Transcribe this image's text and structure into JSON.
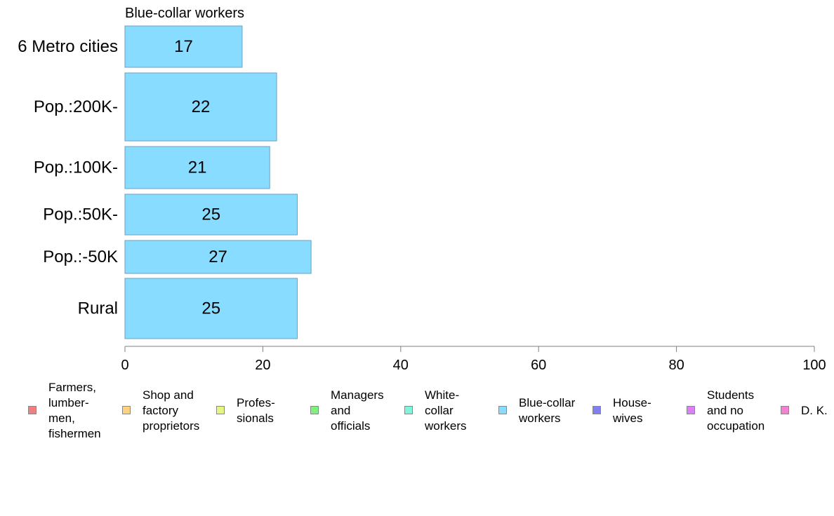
{
  "chart_data": {
    "type": "bar",
    "orientation": "horizontal",
    "title": "Blue-collar workers",
    "categories": [
      "6 Metro cities",
      "Pop.:200K-",
      "Pop.:100K-",
      "Pop.:50K-",
      "Pop.:-50K",
      "Rural"
    ],
    "values": [
      17,
      22,
      21,
      25,
      27,
      25
    ],
    "data_labels": [
      "17",
      "22",
      "21",
      "25",
      "27",
      "25"
    ],
    "xlim": [
      0,
      100
    ],
    "x_ticks": [
      "0",
      "20",
      "40",
      "60",
      "80",
      "100"
    ],
    "grid": false,
    "bar_color": "#87dcff",
    "bar_border_color": "#6fa0c0",
    "legend_position": "bottom",
    "legend": [
      {
        "label": "Farmers,\nlumber-\nmen,\nfishermen",
        "color": "#f08080"
      },
      {
        "label": "Shop and\nfactory\nproprietors",
        "color": "#ffd280"
      },
      {
        "label": "Profes-\nsionals",
        "color": "#e6f580"
      },
      {
        "label": "Managers\nand\nofficials",
        "color": "#80f080"
      },
      {
        "label": "White-\ncollar\nworkers",
        "color": "#80f5dc"
      },
      {
        "label": "Blue-collar\nworkers",
        "color": "#87dcff"
      },
      {
        "label": "House-\nwives",
        "color": "#8080f0"
      },
      {
        "label": "Students\nand no\noccupation",
        "color": "#dc80f5"
      },
      {
        "label": "D. K.",
        "color": "#f580d2"
      }
    ]
  }
}
